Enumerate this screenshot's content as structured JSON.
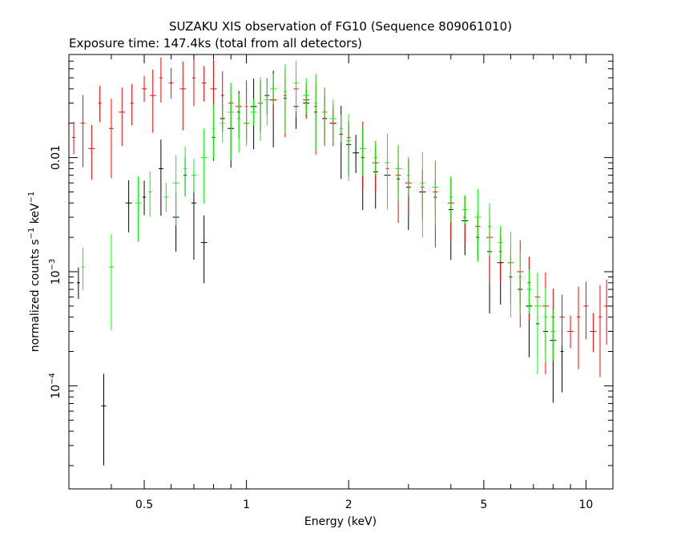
{
  "chart_data": {
    "type": "scatter",
    "title": "SUZAKU XIS observation of FG10 (Sequence 809061010)",
    "subtitle": "Exposure time: 147.4ks (total from all detectors)",
    "xlabel": "Energy (keV)",
    "ylabel": {
      "text": "normalized counts s",
      "exp1": "−1",
      "mid": " keV",
      "exp2": "−1"
    },
    "x_scale": "log",
    "y_scale": "log",
    "xlim": [
      0.3,
      12
    ],
    "ylim": [
      1.25e-05,
      0.08
    ],
    "x_ticks": [
      {
        "value": 0.5,
        "label": "0.5"
      },
      {
        "value": 1,
        "label": "1"
      },
      {
        "value": 2,
        "label": "2"
      },
      {
        "value": 5,
        "label": "5"
      },
      {
        "value": 10,
        "label": "10"
      }
    ],
    "y_ticks": [
      {
        "value": 0.0001,
        "base": "10",
        "exp": "−4"
      },
      {
        "value": 0.001,
        "base": "10",
        "exp": "−3"
      },
      {
        "value": 0.01,
        "label": "0.01"
      }
    ],
    "grid": false,
    "legend": "none",
    "series": [
      {
        "color": "#000000",
        "points": [
          [
            0.32,
            0.0008
          ],
          [
            0.38,
            6.67e-05
          ],
          [
            0.45,
            0.004
          ],
          [
            0.5,
            0.0045
          ],
          [
            0.56,
            0.008
          ],
          [
            0.62,
            0.003
          ],
          [
            0.66,
            0.007
          ],
          [
            0.7,
            0.004
          ],
          [
            0.75,
            0.0018
          ],
          [
            0.8,
            0.015
          ],
          [
            0.85,
            0.022
          ],
          [
            0.9,
            0.018
          ],
          [
            0.95,
            0.025
          ],
          [
            1.0,
            0.02
          ],
          [
            1.05,
            0.028
          ],
          [
            1.1,
            0.03
          ],
          [
            1.15,
            0.035
          ],
          [
            1.2,
            0.032
          ],
          [
            1.3,
            0.033
          ],
          [
            1.4,
            0.028
          ],
          [
            1.5,
            0.03
          ],
          [
            1.6,
            0.025
          ],
          [
            1.7,
            0.022
          ],
          [
            1.8,
            0.02
          ],
          [
            1.9,
            0.016
          ],
          [
            2.0,
            0.013
          ],
          [
            2.1,
            0.011
          ],
          [
            2.2,
            0.01
          ],
          [
            2.4,
            0.0075
          ],
          [
            2.6,
            0.007
          ],
          [
            2.8,
            0.0065
          ],
          [
            3.0,
            0.0055
          ],
          [
            3.3,
            0.005
          ],
          [
            3.6,
            0.0045
          ],
          [
            4.0,
            0.0035
          ],
          [
            4.4,
            0.0028
          ],
          [
            4.8,
            0.002
          ],
          [
            5.2,
            0.0015
          ],
          [
            5.6,
            0.0012
          ],
          [
            6.0,
            0.0009
          ],
          [
            6.4,
            0.0007
          ],
          [
            6.8,
            0.0005
          ],
          [
            7.2,
            0.00035
          ],
          [
            7.6,
            0.0003
          ],
          [
            8.0,
            0.00025
          ],
          [
            8.5,
            0.0002
          ]
        ]
      },
      {
        "color": "#ff0000",
        "points": [
          [
            0.31,
            0.015
          ],
          [
            0.33,
            0.02
          ],
          [
            0.35,
            0.012
          ],
          [
            0.37,
            0.03
          ],
          [
            0.4,
            0.018
          ],
          [
            0.43,
            0.025
          ],
          [
            0.46,
            0.03
          ],
          [
            0.5,
            0.04
          ],
          [
            0.53,
            0.035
          ],
          [
            0.56,
            0.05
          ],
          [
            0.6,
            0.045
          ],
          [
            0.65,
            0.04
          ],
          [
            0.7,
            0.05
          ],
          [
            0.75,
            0.045
          ],
          [
            0.8,
            0.04
          ],
          [
            0.85,
            0.035
          ],
          [
            0.9,
            0.03
          ],
          [
            0.95,
            0.028
          ],
          [
            1.0,
            0.028
          ],
          [
            1.1,
            0.03
          ],
          [
            1.2,
            0.032
          ],
          [
            1.3,
            0.035
          ],
          [
            1.4,
            0.04
          ],
          [
            1.5,
            0.032
          ],
          [
            1.6,
            0.028
          ],
          [
            1.7,
            0.025
          ],
          [
            1.8,
            0.02
          ],
          [
            2.0,
            0.015
          ],
          [
            2.2,
            0.012
          ],
          [
            2.4,
            0.009
          ],
          [
            2.6,
            0.008
          ],
          [
            2.8,
            0.007
          ],
          [
            3.0,
            0.006
          ],
          [
            3.3,
            0.0055
          ],
          [
            3.6,
            0.005
          ],
          [
            4.0,
            0.004
          ],
          [
            4.4,
            0.003
          ],
          [
            4.8,
            0.0025
          ],
          [
            5.2,
            0.002
          ],
          [
            5.6,
            0.0015
          ],
          [
            6.0,
            0.0012
          ],
          [
            6.4,
            0.001
          ],
          [
            6.8,
            0.0008
          ],
          [
            7.2,
            0.0006
          ],
          [
            7.6,
            0.0005
          ],
          [
            8.0,
            0.0004
          ],
          [
            8.5,
            0.0004
          ],
          [
            9.0,
            0.0003
          ],
          [
            9.5,
            0.0004
          ],
          [
            10.0,
            0.0005
          ],
          [
            10.5,
            0.0003
          ],
          [
            11.0,
            0.0004
          ],
          [
            11.5,
            0.0005
          ]
        ]
      },
      {
        "color": "#00ff00",
        "points": [
          [
            0.33,
            0.0011
          ],
          [
            0.4,
            0.0011
          ],
          [
            0.48,
            0.004
          ],
          [
            0.52,
            0.005
          ],
          [
            0.58,
            0.0045
          ],
          [
            0.62,
            0.006
          ],
          [
            0.66,
            0.008
          ],
          [
            0.7,
            0.007
          ],
          [
            0.75,
            0.01
          ],
          [
            0.8,
            0.018
          ],
          [
            0.85,
            0.02
          ],
          [
            0.9,
            0.025
          ],
          [
            0.95,
            0.022
          ],
          [
            1.0,
            0.02
          ],
          [
            1.05,
            0.025
          ],
          [
            1.1,
            0.03
          ],
          [
            1.15,
            0.032
          ],
          [
            1.2,
            0.04
          ],
          [
            1.3,
            0.038
          ],
          [
            1.4,
            0.045
          ],
          [
            1.5,
            0.035
          ],
          [
            1.6,
            0.03
          ],
          [
            1.7,
            0.025
          ],
          [
            1.8,
            0.022
          ],
          [
            1.9,
            0.018
          ],
          [
            2.0,
            0.014
          ],
          [
            2.2,
            0.012
          ],
          [
            2.4,
            0.01
          ],
          [
            2.6,
            0.009
          ],
          [
            2.8,
            0.008
          ],
          [
            3.0,
            0.007
          ],
          [
            3.3,
            0.006
          ],
          [
            3.6,
            0.0055
          ],
          [
            4.0,
            0.0045
          ],
          [
            4.4,
            0.0035
          ],
          [
            4.8,
            0.003
          ],
          [
            5.2,
            0.0025
          ],
          [
            5.6,
            0.0018
          ],
          [
            6.0,
            0.0012
          ],
          [
            6.4,
            0.0009
          ],
          [
            6.8,
            0.0007
          ],
          [
            7.2,
            0.0005
          ],
          [
            7.6,
            0.0004
          ],
          [
            8.0,
            0.0003
          ]
        ]
      }
    ]
  }
}
